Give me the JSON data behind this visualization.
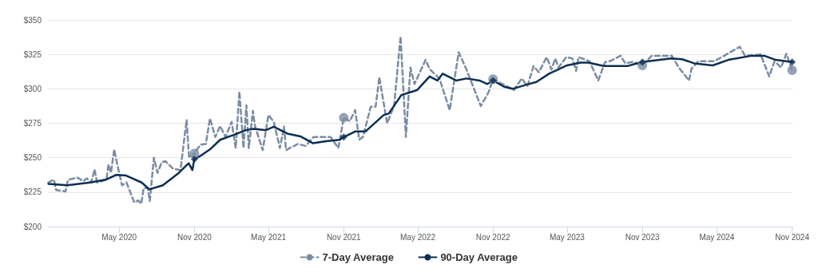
{
  "chart_data": {
    "type": "line",
    "xlim": [
      "2019-11-09",
      "2024-11-03"
    ],
    "xticks": [
      {
        "value": "2020-05-01",
        "label": "May 2020"
      },
      {
        "value": "2020-11-01",
        "label": "Nov 2020"
      },
      {
        "value": "2021-05-01",
        "label": "May 2021"
      },
      {
        "value": "2021-11-01",
        "label": "Nov 2021"
      },
      {
        "value": "2022-05-01",
        "label": "May 2022"
      },
      {
        "value": "2022-11-01",
        "label": "Nov 2022"
      },
      {
        "value": "2023-05-01",
        "label": "May 2023"
      },
      {
        "value": "2023-11-01",
        "label": "Nov 2023"
      },
      {
        "value": "2024-05-01",
        "label": "May 2024"
      },
      {
        "value": "2024-11-01",
        "label": "Nov 2024"
      }
    ],
    "ylim": [
      200,
      350
    ],
    "yticks": [
      {
        "value": 200,
        "label": "$200"
      },
      {
        "value": 225,
        "label": "$225"
      },
      {
        "value": 250,
        "label": "$250"
      },
      {
        "value": 275,
        "label": "$275"
      },
      {
        "value": 300,
        "label": "$300"
      },
      {
        "value": 325,
        "label": "$325"
      },
      {
        "value": 350,
        "label": "$350"
      }
    ],
    "grid": "y",
    "legend": "bottom",
    "marker": "none",
    "series": [
      {
        "name": "7-Day Average",
        "color": "#7a8ca3",
        "line_style": "dashed",
        "x": [
          "2019-11-10",
          "2019-11-24",
          "2019-11-29",
          "2019-12-22",
          "2019-12-28",
          "2020-01-20",
          "2020-02-04",
          "2020-02-12",
          "2020-02-23",
          "2020-03-02",
          "2020-03-08",
          "2020-03-31",
          "2020-04-05",
          "2020-04-11",
          "2020-04-19",
          "2020-04-28",
          "2020-05-08",
          "2020-05-19",
          "2020-06-07",
          "2020-06-17",
          "2020-06-24",
          "2020-06-30",
          "2020-07-10",
          "2020-07-15",
          "2020-07-25",
          "2020-08-03",
          "2020-08-13",
          "2020-08-22",
          "2020-09-10",
          "2020-09-28",
          "2020-10-13",
          "2020-10-19",
          "2020-11-01",
          "2020-11-16",
          "2020-11-29",
          "2020-12-09",
          "2020-12-22",
          "2021-01-03",
          "2021-01-16",
          "2021-01-31",
          "2021-02-10",
          "2021-02-19",
          "2021-03-01",
          "2021-03-08",
          "2021-03-14",
          "2021-03-24",
          "2021-03-29",
          "2021-04-17",
          "2021-05-01",
          "2021-05-14",
          "2021-05-29",
          "2021-06-08",
          "2021-06-13",
          "2021-07-12",
          "2021-07-31",
          "2021-08-19",
          "2021-09-07",
          "2021-09-30",
          "2021-10-19",
          "2021-11-01",
          "2021-11-16",
          "2021-11-29",
          "2021-12-09",
          "2021-12-18",
          "2022-01-06",
          "2022-01-18",
          "2022-01-27",
          "2022-02-15",
          "2022-03-04",
          "2022-03-20",
          "2022-04-02",
          "2022-04-13",
          "2022-04-23",
          "2022-05-20",
          "2022-05-31",
          "2022-06-23",
          "2022-07-18",
          "2022-08-09",
          "2022-08-28",
          "2022-10-02",
          "2022-10-21",
          "2022-11-01",
          "2022-11-27",
          "2022-12-22",
          "2023-01-10",
          "2023-01-24",
          "2023-02-08",
          "2023-02-21",
          "2023-03-12",
          "2023-03-24",
          "2023-04-02",
          "2023-04-10",
          "2023-04-29",
          "2023-05-14",
          "2023-05-23",
          "2023-05-29",
          "2023-06-25",
          "2023-07-16",
          "2023-08-02",
          "2023-08-13",
          "2023-09-09",
          "2023-09-20",
          "2023-10-09",
          "2023-11-01",
          "2023-11-24",
          "2024-01-12",
          "2024-01-29",
          "2024-02-23",
          "2024-02-29",
          "2024-03-17",
          "2024-04-24",
          "2024-05-19",
          "2024-06-26",
          "2024-07-09",
          "2024-08-16",
          "2024-09-06",
          "2024-09-19",
          "2024-10-05",
          "2024-10-18",
          "2024-11-01"
        ],
        "values": [
          232,
          234,
          226.5,
          225.5,
          234,
          235.5,
          233,
          235,
          232,
          241.5,
          232,
          234,
          245,
          239,
          256,
          243,
          230,
          232,
          217.5,
          219,
          216.5,
          228,
          228,
          218.5,
          250,
          239,
          246.5,
          247.5,
          242,
          241,
          277.5,
          250,
          253,
          259.5,
          260,
          278.5,
          265,
          273,
          265,
          276,
          257,
          298,
          257,
          288,
          257,
          284,
          273,
          255.5,
          281,
          276,
          257,
          272.5,
          255.5,
          260,
          258.5,
          265,
          265,
          265,
          257,
          279,
          276.5,
          284.5,
          263,
          265,
          287,
          287,
          308.5,
          275,
          287.5,
          338,
          265,
          315.5,
          303.5,
          321,
          314,
          307.5,
          284.5,
          326.5,
          314,
          287.5,
          297.5,
          307,
          303,
          299,
          307.5,
          302,
          316.5,
          312,
          323,
          314,
          322,
          315.5,
          323,
          322,
          313,
          323,
          320,
          306,
          319.5,
          320,
          324,
          318.5,
          319.5,
          317,
          324,
          324,
          315.5,
          306,
          314.5,
          320,
          320,
          324,
          330.5,
          324,
          325,
          309,
          320,
          315.5,
          325.5,
          313.5
        ]
      },
      {
        "name": "90-Day Average",
        "color": "#0d2e52",
        "line_style": "solid",
        "x": [
          "2019-11-10",
          "2019-12-26",
          "2020-02-21",
          "2020-03-29",
          "2020-04-24",
          "2020-05-18",
          "2020-06-25",
          "2020-07-14",
          "2020-08-16",
          "2020-09-24",
          "2020-10-18",
          "2020-10-27",
          "2020-11-01",
          "2020-11-14",
          "2020-12-09",
          "2021-01-03",
          "2021-02-05",
          "2021-03-07",
          "2021-03-26",
          "2021-04-25",
          "2021-05-14",
          "2021-06-16",
          "2021-07-18",
          "2021-08-18",
          "2021-09-19",
          "2021-10-22",
          "2021-11-01",
          "2021-11-29",
          "2021-12-24",
          "2022-02-07",
          "2022-02-19",
          "2022-03-22",
          "2022-04-29",
          "2022-05-30",
          "2022-06-18",
          "2022-07-01",
          "2022-08-03",
          "2022-08-28",
          "2022-09-29",
          "2022-10-18",
          "2022-11-01",
          "2022-11-28",
          "2022-12-19",
          "2023-01-22",
          "2023-02-15",
          "2023-03-18",
          "2023-05-01",
          "2023-06-03",
          "2023-06-22",
          "2023-07-30",
          "2023-09-25",
          "2023-10-13",
          "2023-11-01",
          "2023-11-16",
          "2024-01-10",
          "2024-02-06",
          "2024-03-07",
          "2024-04-21",
          "2024-05-29",
          "2024-07-25",
          "2024-08-25",
          "2024-09-22",
          "2024-11-01"
        ],
        "values": [
          231,
          230,
          232,
          234,
          237.5,
          237,
          232,
          227,
          230,
          239,
          246,
          241,
          249,
          251,
          256,
          263,
          266.5,
          270,
          271,
          270,
          272.5,
          267.5,
          265.5,
          260.5,
          262,
          263,
          265,
          269,
          269,
          281,
          282,
          295.5,
          299,
          309,
          306,
          311,
          306,
          307.5,
          306,
          303.5,
          306,
          301.5,
          300,
          303,
          305,
          311,
          317,
          319,
          319,
          316.5,
          316.5,
          318,
          319.5,
          320,
          322,
          321.5,
          318.5,
          317,
          321,
          324,
          324,
          321,
          319.5
        ]
      },
      {
        "type": "scatter",
        "marker": "circle",
        "color": "#7a8ca3",
        "x": [
          "2020-11-01",
          "2021-11-01",
          "2022-11-01",
          "2023-11-01",
          "2024-11-01"
        ],
        "values": [
          253,
          279,
          307,
          317,
          313.5
        ]
      },
      {
        "type": "scatter",
        "marker": "diamond",
        "color": "#0d2e52",
        "x": [
          "2020-11-01",
          "2021-11-01",
          "2022-11-01",
          "2023-11-01",
          "2024-11-01"
        ],
        "values": [
          249,
          265,
          306,
          319.5,
          319.5
        ]
      }
    ]
  }
}
